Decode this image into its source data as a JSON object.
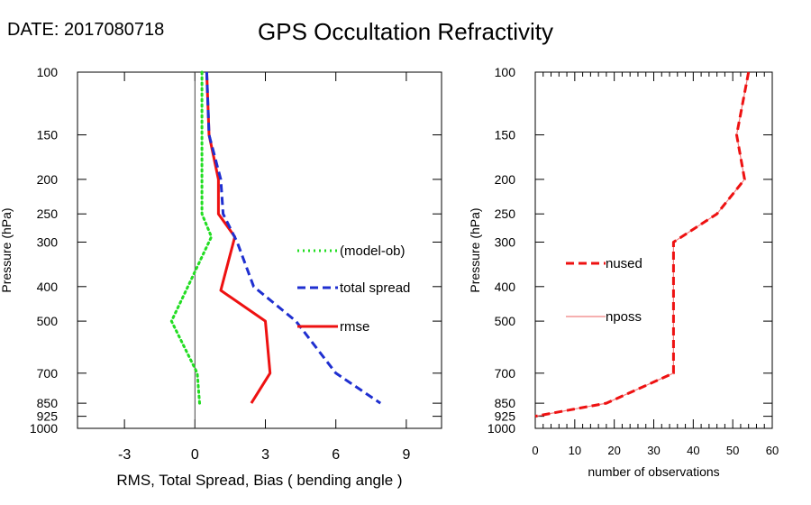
{
  "header": {
    "date_text": "DATE: 2017080718",
    "title": "GPS Occultation Refractivity"
  },
  "chart_data": [
    {
      "type": "line",
      "ylabel": "Pressure (hPa)",
      "xlabel": "RMS, Total Spread, Bias ( bending angle )",
      "y_scale": "log",
      "y_reversed": true,
      "ylim": [
        1000,
        100
      ],
      "xlim": [
        -5,
        10.5
      ],
      "xticks": [
        -3,
        0,
        3,
        6,
        9
      ],
      "yticks": [
        100,
        150,
        200,
        250,
        300,
        400,
        500,
        700,
        850,
        925,
        1000
      ],
      "zero_line": true,
      "legend_position": "right-middle",
      "series": [
        {
          "name": "(model-ob)",
          "color": "#22dd22",
          "style": "dotted",
          "points": [
            [
              0.3,
              100
            ],
            [
              0.3,
              150
            ],
            [
              0.3,
              200
            ],
            [
              0.3,
              250
            ],
            [
              0.7,
              290
            ],
            [
              -0.3,
              400
            ],
            [
              -1.0,
              500
            ],
            [
              0.1,
              700
            ],
            [
              0.2,
              850
            ]
          ]
        },
        {
          "name": "total spread",
          "color": "#1f2fd0",
          "style": "dashed",
          "points": [
            [
              0.5,
              100
            ],
            [
              0.6,
              150
            ],
            [
              1.1,
              200
            ],
            [
              1.2,
              250
            ],
            [
              1.8,
              300
            ],
            [
              2.5,
              400
            ],
            [
              4.3,
              500
            ],
            [
              6.0,
              700
            ],
            [
              7.9,
              850
            ]
          ]
        },
        {
          "name": "rmse",
          "color": "#ee1111",
          "style": "solid",
          "points": [
            [
              0.5,
              100
            ],
            [
              0.6,
              150
            ],
            [
              1.0,
              200
            ],
            [
              1.0,
              250
            ],
            [
              1.7,
              290
            ],
            [
              1.1,
              410
            ],
            [
              3.0,
              500
            ],
            [
              3.2,
              700
            ],
            [
              2.4,
              850
            ]
          ]
        }
      ]
    },
    {
      "type": "line",
      "ylabel": "Pressure (hPa)",
      "xlabel": "number of observations",
      "y_scale": "log",
      "y_reversed": true,
      "ylim": [
        1000,
        100
      ],
      "xlim": [
        0,
        60
      ],
      "xticks": [
        0,
        10,
        20,
        30,
        40,
        50,
        60
      ],
      "yticks": [
        100,
        150,
        200,
        250,
        300,
        400,
        500,
        700,
        850,
        925,
        1000
      ],
      "legend_position": "left-middle",
      "series": [
        {
          "name": "nused",
          "color": "#ee1111",
          "style": "dashed",
          "points": [
            [
              54,
              100
            ],
            [
              51,
              150
            ],
            [
              53,
              200
            ],
            [
              46,
              250
            ],
            [
              35,
              300
            ],
            [
              35,
              400
            ],
            [
              35,
              500
            ],
            [
              35,
              700
            ],
            [
              18,
              850
            ],
            [
              0,
              925
            ]
          ]
        },
        {
          "name": "nposs",
          "color": "#f08080",
          "style": "solid",
          "points": [
            [
              54,
              100
            ],
            [
              51,
              150
            ],
            [
              53,
              200
            ],
            [
              46,
              250
            ],
            [
              35,
              300
            ],
            [
              35,
              400
            ],
            [
              35,
              500
            ],
            [
              35,
              700
            ],
            [
              18,
              850
            ],
            [
              0,
              925
            ]
          ]
        }
      ]
    }
  ]
}
